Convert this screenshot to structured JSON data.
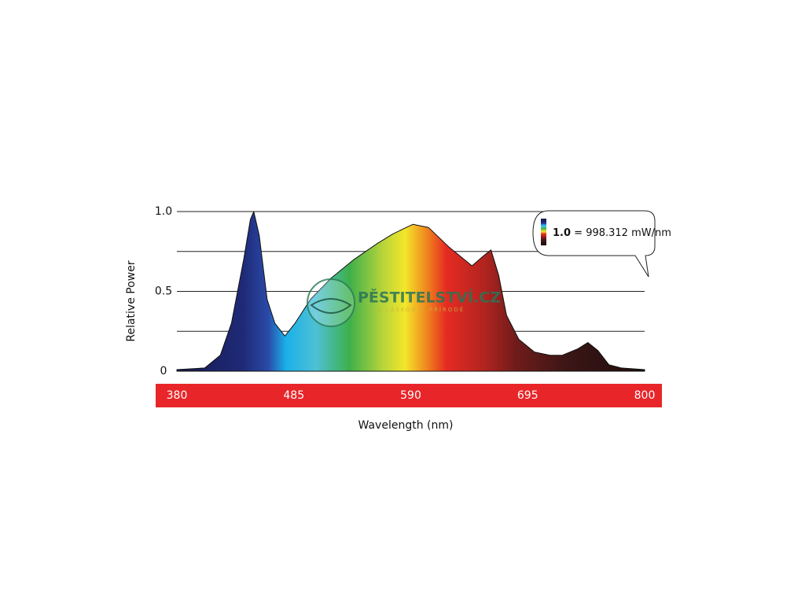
{
  "chart_data": {
    "type": "area",
    "xlabel": "Wavelength (nm)",
    "ylabel": "Relative Power",
    "x": [
      380,
      405,
      419,
      429,
      440,
      446,
      449,
      454,
      461,
      468,
      477,
      486,
      500,
      518,
      539,
      560,
      574,
      592,
      606,
      624,
      645,
      655,
      662,
      669,
      676,
      687,
      701,
      715,
      726,
      740,
      749,
      758,
      768,
      779,
      800
    ],
    "values": [
      0.01,
      0.02,
      0.1,
      0.3,
      0.7,
      0.95,
      1.0,
      0.85,
      0.45,
      0.3,
      0.22,
      0.3,
      0.45,
      0.58,
      0.7,
      0.8,
      0.86,
      0.92,
      0.9,
      0.78,
      0.66,
      0.72,
      0.76,
      0.6,
      0.35,
      0.2,
      0.12,
      0.1,
      0.1,
      0.14,
      0.18,
      0.13,
      0.04,
      0.02,
      0.01
    ],
    "xlim": [
      380,
      800
    ],
    "ylim": [
      0,
      1
    ],
    "xticks": [
      380,
      485,
      590,
      695,
      800
    ],
    "yticks": [
      0,
      0.5,
      {
        "value": 1,
        "label": "1.0"
      }
    ],
    "grid_lines": [
      0,
      0.25,
      0.5,
      0.75,
      1
    ],
    "x_axis_band_color": "#e8262a",
    "fill_gradient": [
      {
        "nm": 380,
        "color": "#161a4c"
      },
      {
        "nm": 440,
        "color": "#1f2a78"
      },
      {
        "nm": 462,
        "color": "#2a4aa8"
      },
      {
        "nm": 478,
        "color": "#1bb0ea"
      },
      {
        "nm": 505,
        "color": "#4ec0d4"
      },
      {
        "nm": 535,
        "color": "#3db04b"
      },
      {
        "nm": 565,
        "color": "#b8d43a"
      },
      {
        "nm": 585,
        "color": "#f3e62a"
      },
      {
        "nm": 605,
        "color": "#f0821e"
      },
      {
        "nm": 622,
        "color": "#e52b22"
      },
      {
        "nm": 655,
        "color": "#b42420"
      },
      {
        "nm": 685,
        "color": "#6e1c1a"
      },
      {
        "nm": 730,
        "color": "#3c1616"
      },
      {
        "nm": 800,
        "color": "#1e0c0c"
      }
    ],
    "annotation": {
      "bold": "1.0",
      "text": "= 998.312 mW/nm"
    },
    "watermark": {
      "title": "PĚSTITELSTVÍ.CZ",
      "subtitle": "S LÁSKOU K PŘÍRODĚ"
    }
  }
}
